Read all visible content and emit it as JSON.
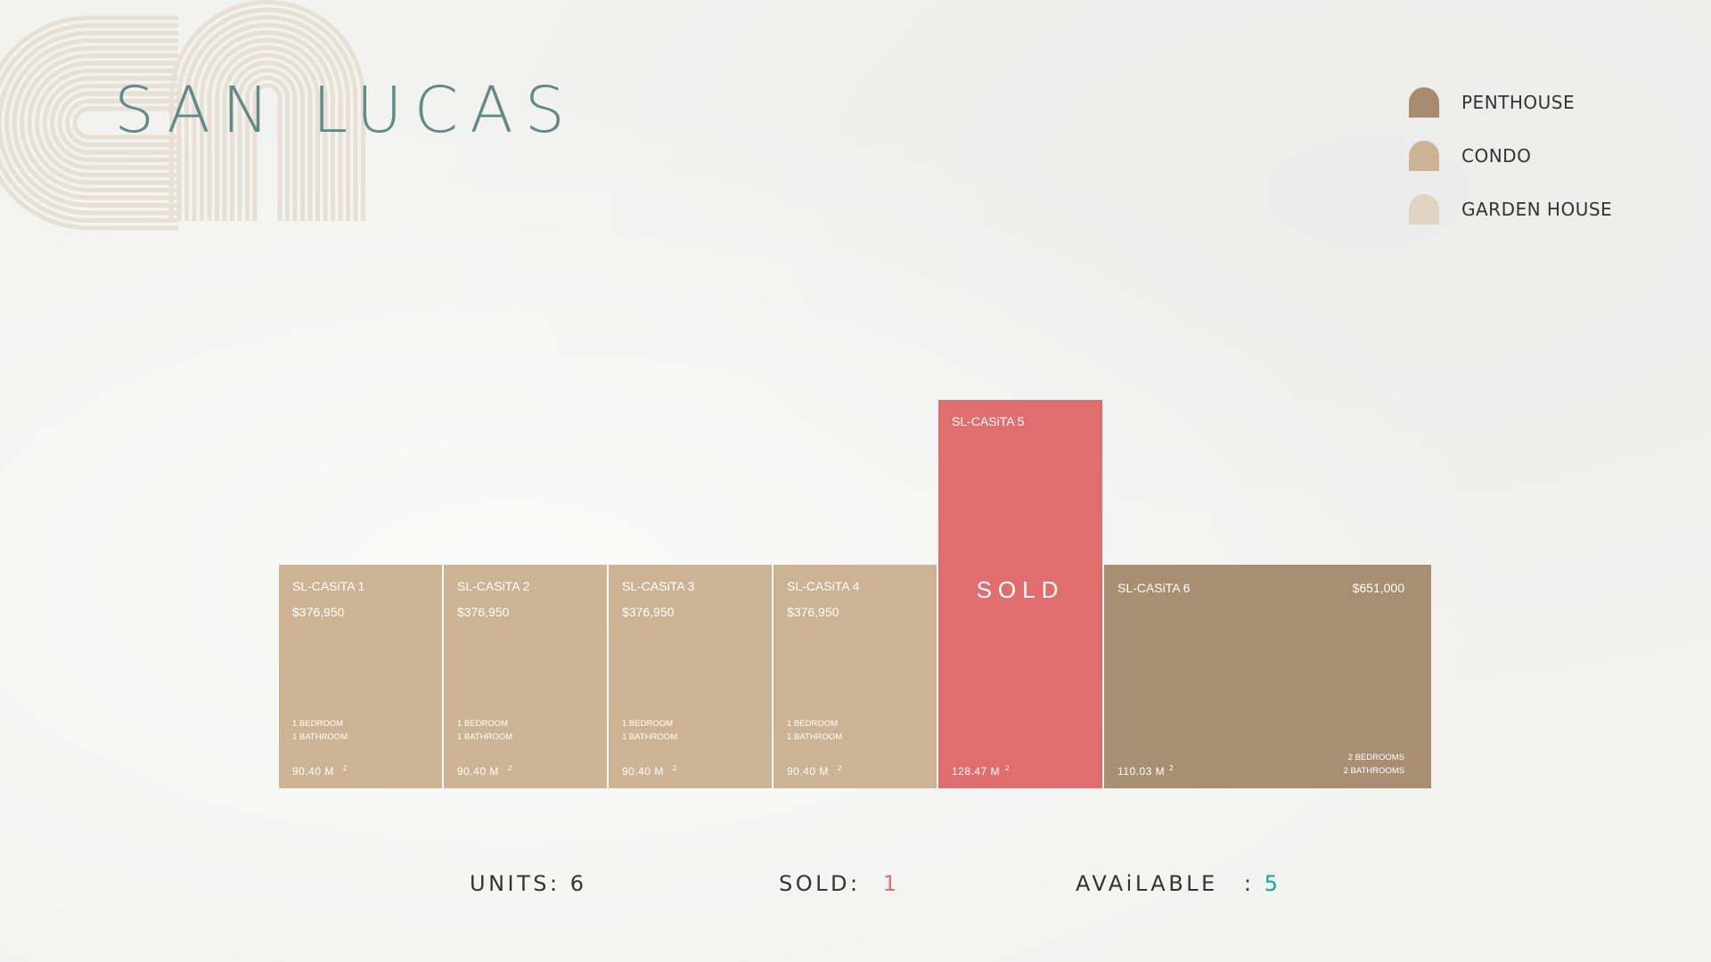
{
  "title": "SAN LUCAS",
  "legend": [
    {
      "label": "PENTHOUSE",
      "color": "#a88b6e"
    },
    {
      "label": "CONDO",
      "color": "#cbb394"
    },
    {
      "label": "GARDEN HOUSE",
      "color": "#e0d3c2"
    }
  ],
  "units": [
    {
      "name": "SL-CASiTA 1",
      "price": "$376,950",
      "bedrooms": "1 BEDROOM",
      "bathrooms": "1 BATHROOM",
      "area": "90.40 M",
      "area_sup": "2",
      "status": "available",
      "type": "CONDO"
    },
    {
      "name": "SL-CASiTA 2",
      "price": "$376,950",
      "bedrooms": "1 BEDROOM",
      "bathrooms": "1 BATHROOM",
      "area": "90.40 M",
      "area_sup": "2",
      "status": "available",
      "type": "CONDO"
    },
    {
      "name": "SL-CASiTA 3",
      "price": "$376,950",
      "bedrooms": "1 BEDROOM",
      "bathrooms": "1 BATHROOM",
      "area": "90.40 M",
      "area_sup": "2",
      "status": "available",
      "type": "CONDO"
    },
    {
      "name": "SL-CASiTA 4",
      "price": "$376,950",
      "bedrooms": "1 BEDROOM",
      "bathrooms": "1 BATHROOM",
      "area": "90.40 M",
      "area_sup": "2",
      "status": "available",
      "type": "CONDO"
    },
    {
      "name": "SL-CASiTA 5",
      "sold_label": "SOLD",
      "area": "128.47 M",
      "area_sup": "2",
      "status": "sold"
    },
    {
      "name": "SL-CASiTA 6",
      "price": "$651,000",
      "bedrooms": "2 BEDROOMS",
      "bathrooms": "2 BATHROOMS",
      "area": "110.03 M",
      "area_sup": "2",
      "status": "available",
      "type": "PENTHOUSE"
    }
  ],
  "colors": {
    "condo": "#cbb394",
    "penthouse": "#a88f73",
    "sold": "#e06e6e",
    "title": "#628a87",
    "available_count": "#1aa39a"
  },
  "footer": {
    "units_label": "UNITS:",
    "units_value": "6",
    "sold_label": "SOLD:",
    "sold_value": "1",
    "available_label": "AVAiLABLE",
    "available_sep": ":",
    "available_value": "5"
  }
}
